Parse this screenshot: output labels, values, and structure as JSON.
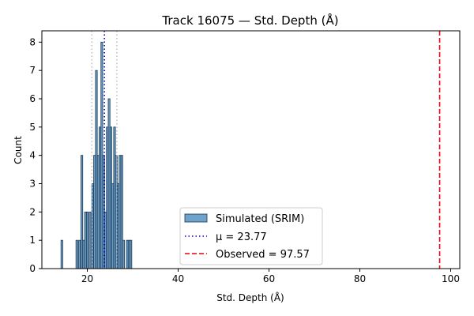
{
  "chart_data": {
    "type": "bar",
    "title": "Track 16075 — Std. Depth (Å)",
    "xlabel": "Std. Depth (Å)",
    "ylabel": "Count",
    "xlim": [
      10,
      102
    ],
    "ylim": [
      0,
      8.4
    ],
    "xticks": [
      20,
      40,
      60,
      80,
      100
    ],
    "yticks": [
      0,
      1,
      2,
      3,
      4,
      5,
      6,
      7,
      8
    ],
    "bin_width": 0.39,
    "bins": [
      {
        "x": 14.4,
        "count": 1
      },
      {
        "x": 17.7,
        "count": 1
      },
      {
        "x": 18.3,
        "count": 1
      },
      {
        "x": 18.8,
        "count": 4
      },
      {
        "x": 19.2,
        "count": 1
      },
      {
        "x": 19.6,
        "count": 2
      },
      {
        "x": 20.0,
        "count": 2
      },
      {
        "x": 20.6,
        "count": 2
      },
      {
        "x": 21.2,
        "count": 3
      },
      {
        "x": 21.6,
        "count": 4
      },
      {
        "x": 22.0,
        "count": 7
      },
      {
        "x": 22.4,
        "count": 4
      },
      {
        "x": 22.8,
        "count": 5
      },
      {
        "x": 23.2,
        "count": 8
      },
      {
        "x": 23.6,
        "count": 4
      },
      {
        "x": 24.0,
        "count": 2
      },
      {
        "x": 24.4,
        "count": 5
      },
      {
        "x": 24.8,
        "count": 6
      },
      {
        "x": 25.2,
        "count": 5
      },
      {
        "x": 25.6,
        "count": 3
      },
      {
        "x": 26.0,
        "count": 5
      },
      {
        "x": 26.4,
        "count": 4
      },
      {
        "x": 26.8,
        "count": 3
      },
      {
        "x": 27.2,
        "count": 4
      },
      {
        "x": 27.6,
        "count": 4
      },
      {
        "x": 28.0,
        "count": 1
      },
      {
        "x": 28.8,
        "count": 1
      },
      {
        "x": 29.2,
        "count": 1
      },
      {
        "x": 29.6,
        "count": 1
      }
    ],
    "series": [
      {
        "name": "Simulated (SRIM)",
        "kind": "histogram",
        "color": "#6fa3cc",
        "edge_color": "#1a3550"
      },
      {
        "name": "μ = 23.77",
        "kind": "vline",
        "value": 23.77,
        "color": "#0000cc",
        "style": "dotted"
      },
      {
        "name": "Observed = 97.57",
        "kind": "vline",
        "value": 97.57,
        "color": "#e8000b",
        "style": "dashed"
      }
    ],
    "reference_lines": [
      {
        "value": 21.0,
        "color": "#b0b0b0",
        "style": "dotted"
      },
      {
        "value": 26.5,
        "color": "#b0b0b0",
        "style": "dotted"
      }
    ],
    "legend_position": "lower-center",
    "grid": false
  }
}
